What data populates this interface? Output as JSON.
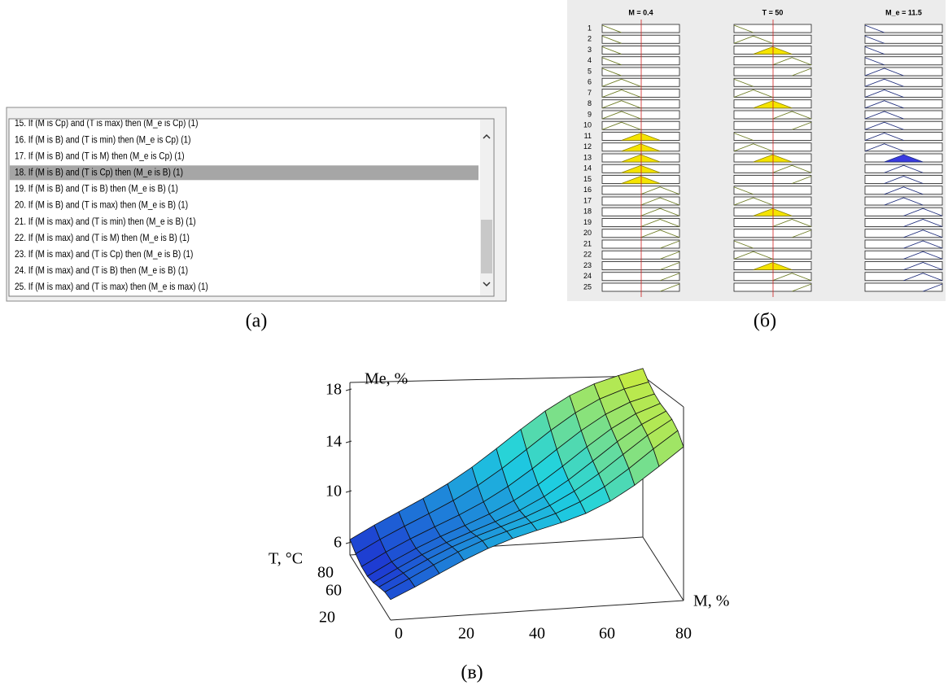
{
  "panels": [
    {
      "label": "(a)"
    },
    {
      "label": "(б)"
    },
    {
      "label": "(в)"
    }
  ],
  "rule_list": {
    "selected_row": 3,
    "rows": [
      "15. If (M is Cp) and (T is max) then (M_e is Cp) (1)",
      "16. If (M is B) and (T is min) then (M_e is Cp) (1)",
      "17. If (M is B) and (T is M) then (M_e is Cp) (1)",
      "18. If (M is B) and (T is Cp) then (M_e is B) (1)",
      "19. If (M is B) and (T is B) then (M_e is B) (1)",
      "20. If (M is B) and (T is max) then (M_e is B) (1)",
      "21. If (M is max) and (T is min) then (M_e is B) (1)",
      "22. If (M is max) and (T is M) then (M_e is B) (1)",
      "23. If (M is max) and (T is Cp) then (M_e is B) (1)",
      "24. If (M is max) and (T is B) then (M_e is B) (1)",
      "25. If (M is max) and (T is max) then (M_e is max) (1)"
    ]
  },
  "rule_viewer": {
    "headers": [
      "M = 0.4",
      "T = 50",
      "M_e = 11.5"
    ],
    "row_numbers": [
      "1",
      "2",
      "3",
      "4",
      "5",
      "6",
      "7",
      "8",
      "9",
      "10",
      "11",
      "12",
      "13",
      "14",
      "15",
      "16",
      "17",
      "18",
      "19",
      "20",
      "21",
      "22",
      "23",
      "24",
      "25"
    ]
  },
  "surface_plot": {
    "z_label": "Me, %",
    "z_ticks": [
      "18",
      "14",
      "10",
      "6"
    ],
    "y_label": "T, °C",
    "y_ticks": [
      "80",
      "60",
      "20"
    ],
    "x_label": "M, %",
    "x_ticks": [
      "0",
      "20",
      "40",
      "60",
      "80"
    ]
  }
}
